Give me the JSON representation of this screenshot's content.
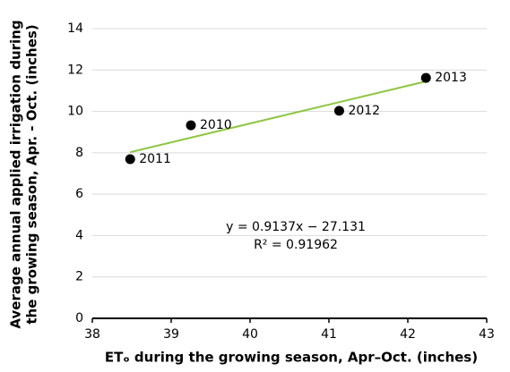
{
  "chart_data": {
    "type": "scatter",
    "x": [
      39.25,
      38.48,
      41.13,
      42.23
    ],
    "values": [
      9.33,
      7.69,
      10.03,
      11.62
    ],
    "point_labels": [
      "2010",
      "2011",
      "2012",
      "2013"
    ],
    "color": "#000000",
    "trendline": {
      "x": [
        38.48,
        42.23
      ],
      "y": [
        8.03,
        11.45
      ],
      "color": "#8dc63f"
    },
    "annotations": [
      "y = 0.9137x − 27.131",
      "R² = 0.91962"
    ],
    "xlabel": "ETₒ during the growing season, Apr–Oct. (inches)",
    "ylabel": [
      "Average annual applied irrigation during",
      "the growing season, Apr. - Oct.  (inches)"
    ],
    "xlim": [
      38,
      43
    ],
    "xticks": [
      38,
      39,
      40,
      41,
      42,
      43
    ],
    "ylim": [
      0,
      14
    ],
    "yticks": [
      0,
      2,
      4,
      6,
      8,
      10,
      12,
      14
    ],
    "grid": true
  }
}
